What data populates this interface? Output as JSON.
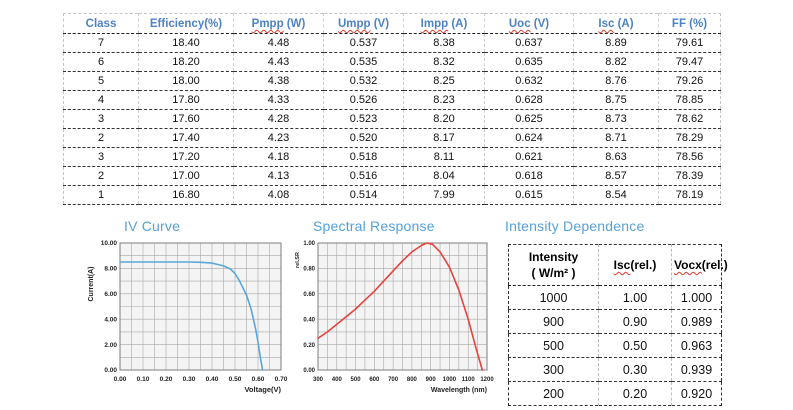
{
  "main_table": {
    "headers": [
      {
        "label": "Class"
      },
      {
        "label": "Efficiency(%)"
      },
      {
        "label": "Pmpp (W)",
        "misspelled": "Pmpp"
      },
      {
        "label": "Umpp (V)",
        "misspelled": "Umpp"
      },
      {
        "label": "Impp (A)",
        "misspelled": "Impp"
      },
      {
        "label": "Uoc (V)",
        "misspelled": "Uoc"
      },
      {
        "label": "Isc (A)",
        "misspelled": "Isc"
      },
      {
        "label": "FF (%)"
      }
    ],
    "rows": [
      [
        "7",
        "18.40",
        "4.48",
        "0.537",
        "8.38",
        "0.637",
        "8.89",
        "79.61"
      ],
      [
        "6",
        "18.20",
        "4.43",
        "0.535",
        "8.32",
        "0.635",
        "8.82",
        "79.47"
      ],
      [
        "5",
        "18.00",
        "4.38",
        "0.532",
        "8.25",
        "0.632",
        "8.76",
        "79.26"
      ],
      [
        "4",
        "17.80",
        "4.33",
        "0.526",
        "8.23",
        "0.628",
        "8.75",
        "78.85"
      ],
      [
        "3",
        "17.60",
        "4.28",
        "0.523",
        "8.20",
        "0.625",
        "8.73",
        "78.62"
      ],
      [
        "2",
        "17.40",
        "4.23",
        "0.520",
        "8.17",
        "0.624",
        "8.71",
        "78.29"
      ],
      [
        "3",
        "17.20",
        "4.18",
        "0.518",
        "8.11",
        "0.621",
        "8.63",
        "78.56"
      ],
      [
        "2",
        "17.00",
        "4.13",
        "0.516",
        "8.04",
        "0.618",
        "8.57",
        "78.39"
      ],
      [
        "1",
        "16.80",
        "4.08",
        "0.514",
        "7.99",
        "0.615",
        "8.54",
        "78.19"
      ]
    ]
  },
  "sections": {
    "iv_curve_title": "IV Curve",
    "spectral_title": "Spectral Response",
    "intensity_title": "Intensity Dependence"
  },
  "intensity_table": {
    "headers": [
      {
        "lines": [
          "Intensity",
          "( W/m² )"
        ]
      },
      {
        "label": "Isc(rel.)",
        "misspelled": "Isc"
      },
      {
        "label": "Vocx(rel.)",
        "misspelled": "Vocx"
      }
    ],
    "rows": [
      [
        "1000",
        "1.00",
        "1.000"
      ],
      [
        "900",
        "0.90",
        "0.989"
      ],
      [
        "500",
        "0.50",
        "0.963"
      ],
      [
        "300",
        "0.30",
        "0.939"
      ],
      [
        "200",
        "0.20",
        "0.920"
      ]
    ]
  },
  "chart_data": [
    {
      "id": "iv-curve",
      "type": "line",
      "title": "IV Curve",
      "xlabel": "Voltage(V)",
      "ylabel": "Current(A)",
      "xlim": [
        0,
        0.7
      ],
      "ylim": [
        0,
        10
      ],
      "x_ticks": [
        "0.00",
        "0.10",
        "0.20",
        "0.30",
        "0.40",
        "0.50",
        "0.60",
        "0.70"
      ],
      "y_ticks": [
        "0.00",
        "2.00",
        "4.00",
        "6.00",
        "8.00",
        "10.00"
      ],
      "grid": true,
      "x_grid_step": 0.05,
      "y_grid_step": 1,
      "legend": "none",
      "line_color": "#5aa7d9",
      "points": [
        [
          0,
          8.5
        ],
        [
          0.05,
          8.5
        ],
        [
          0.1,
          8.5
        ],
        [
          0.15,
          8.5
        ],
        [
          0.2,
          8.5
        ],
        [
          0.25,
          8.5
        ],
        [
          0.3,
          8.5
        ],
        [
          0.35,
          8.48
        ],
        [
          0.4,
          8.42
        ],
        [
          0.45,
          8.2
        ],
        [
          0.48,
          7.95
        ],
        [
          0.5,
          7.6
        ],
        [
          0.52,
          7.0
        ],
        [
          0.55,
          5.9
        ],
        [
          0.57,
          4.8
        ],
        [
          0.59,
          3.2
        ],
        [
          0.6,
          2.2
        ],
        [
          0.61,
          1.0
        ],
        [
          0.62,
          0
        ]
      ]
    },
    {
      "id": "spectral-response",
      "type": "line",
      "title": "Spectral Response",
      "xlabel": "Wavelength (nm)",
      "ylabel": "rel.SR",
      "xlim": [
        300,
        1200
      ],
      "ylim": [
        0,
        1
      ],
      "x_ticks": [
        "300",
        "400",
        "500",
        "600",
        "700",
        "800",
        "900",
        "1000",
        "1100",
        "1200"
      ],
      "y_ticks": [
        "0.00",
        "0.20",
        "0.40",
        "0.60",
        "0.80",
        "1.00"
      ],
      "grid": true,
      "x_grid_step": 50,
      "y_grid_step": 0.1,
      "legend": "none",
      "line_color": "#e8423c",
      "points": [
        [
          300,
          0.25
        ],
        [
          350,
          0.3
        ],
        [
          400,
          0.36
        ],
        [
          450,
          0.42
        ],
        [
          500,
          0.48
        ],
        [
          550,
          0.55
        ],
        [
          600,
          0.62
        ],
        [
          650,
          0.7
        ],
        [
          700,
          0.78
        ],
        [
          750,
          0.86
        ],
        [
          800,
          0.93
        ],
        [
          850,
          0.98
        ],
        [
          880,
          1.0
        ],
        [
          910,
          0.99
        ],
        [
          950,
          0.93
        ],
        [
          1000,
          0.81
        ],
        [
          1050,
          0.63
        ],
        [
          1100,
          0.4
        ],
        [
          1140,
          0.18
        ],
        [
          1175,
          0.0
        ]
      ]
    }
  ],
  "colors": {
    "table_header_blue": "#4e82c4",
    "section_heading_blue": "#54a1da",
    "squiggle_red": "#e23b2e",
    "iv_line": "#5aa7d9",
    "spectral_line": "#e8423c"
  }
}
